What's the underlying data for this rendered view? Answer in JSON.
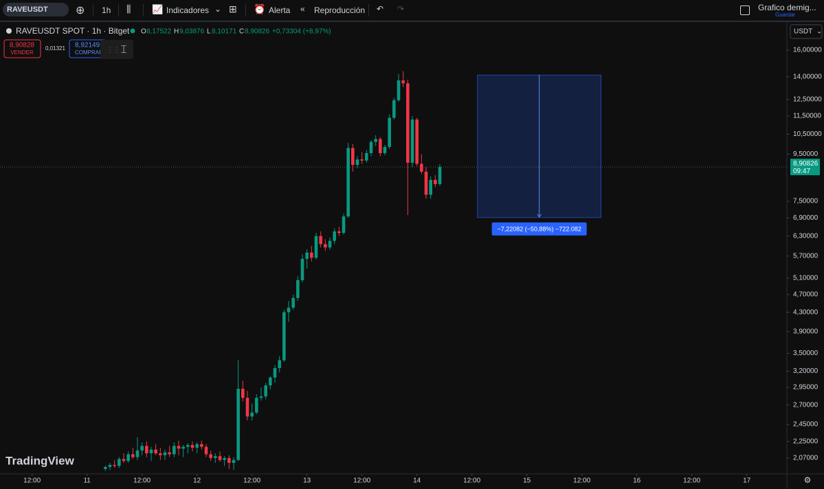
{
  "toolbar": {
    "symbol": "RAVEUSDT",
    "interval": "1h",
    "indicators": "Indicadores",
    "alert": "Alerta",
    "replay": "Reproducción",
    "layout_name": "Grafico demig...",
    "save": "Guardar"
  },
  "legend": {
    "title": "RAVEUSDT SPOT · 1h · Bitget",
    "o_label": "O",
    "o": "8,17522",
    "h_label": "H",
    "h": "9,03876",
    "l_label": "L",
    "l": "8,10171",
    "c_label": "C",
    "c": "8,90826",
    "change": "+0,73304 (+8,97%)"
  },
  "order_panel": {
    "sell_price": "8,90828",
    "sell": "VENDER",
    "spread": "0,01321",
    "buy_price": "8,92149",
    "buy": "COMPRAR"
  },
  "currency": "USDT",
  "brand": "TradingView",
  "chart_data": {
    "type": "candlestick",
    "log_scale": true,
    "grid": false,
    "up_color": "#089981",
    "down_color": "#f23645",
    "x": [
      28,
      29,
      30,
      31,
      32,
      33,
      34,
      35,
      36,
      37,
      38,
      39,
      40,
      41,
      42,
      43,
      44,
      45,
      46,
      47,
      48,
      49,
      50,
      51,
      52,
      53,
      54,
      55,
      56,
      57,
      58,
      59,
      60,
      61,
      62,
      63,
      64,
      65,
      66,
      67,
      68,
      69,
      70,
      71,
      72,
      73,
      74,
      75,
      76,
      77,
      78,
      79,
      80,
      81,
      82,
      83,
      84,
      85,
      86,
      87,
      88,
      89,
      90,
      91,
      92,
      93,
      94,
      95,
      96,
      97,
      98,
      99,
      100,
      101
    ],
    "open": [
      1.96,
      1.98,
      2.0,
      1.99,
      2.06,
      2.04,
      2.11,
      2.08,
      2.15,
      2.2,
      2.12,
      2.16,
      2.12,
      2.1,
      2.13,
      2.11,
      2.2,
      2.17,
      2.19,
      2.21,
      2.18,
      2.22,
      2.19,
      2.11,
      2.07,
      2.09,
      2.05,
      2.07,
      2.02,
      2.05,
      2.93,
      2.8,
      2.55,
      2.6,
      2.8,
      2.82,
      2.98,
      3.1,
      3.25,
      3.38,
      4.3,
      4.4,
      4.62,
      5.05,
      5.62,
      5.8,
      5.65,
      6.3,
      6.05,
      5.95,
      6.15,
      6.45,
      6.4,
      6.95,
      9.8,
      9.0,
      9.25,
      9.2,
      9.55,
      10.1,
      10.25,
      9.55,
      9.85,
      11.4,
      12.45,
      13.75,
      13.55,
      9.1,
      11.3,
      9.05,
      8.7,
      7.75,
      8.35,
      8.17522
    ],
    "high": [
      1.99,
      2.02,
      2.05,
      2.08,
      2.12,
      2.14,
      2.18,
      2.3,
      2.24,
      2.25,
      2.19,
      2.22,
      2.18,
      2.16,
      2.2,
      2.24,
      2.26,
      2.21,
      2.23,
      2.25,
      2.24,
      2.26,
      2.22,
      2.15,
      2.12,
      2.14,
      2.09,
      2.1,
      2.08,
      3.38,
      3.05,
      2.9,
      2.72,
      2.85,
      2.95,
      3.02,
      3.12,
      3.3,
      3.45,
      4.35,
      4.55,
      4.7,
      5.15,
      5.75,
      5.9,
      6.0,
      6.4,
      6.45,
      6.2,
      6.25,
      6.55,
      6.6,
      7.05,
      10.05,
      10.0,
      9.4,
      9.6,
      9.7,
      10.2,
      10.45,
      10.35,
      9.95,
      11.6,
      12.6,
      14.2,
      14.4,
      13.8,
      11.5,
      11.4,
      9.5,
      8.9,
      8.5,
      8.55,
      9.03876
    ],
    "low": [
      1.94,
      1.95,
      1.97,
      1.97,
      2.02,
      2.02,
      2.06,
      2.05,
      2.1,
      2.08,
      2.04,
      2.1,
      2.05,
      2.05,
      2.08,
      2.08,
      2.1,
      2.08,
      2.12,
      2.14,
      2.12,
      2.16,
      2.08,
      2.04,
      2.02,
      2.03,
      1.99,
      1.96,
      1.95,
      2.04,
      2.75,
      2.5,
      2.5,
      2.58,
      2.76,
      2.78,
      2.92,
      3.02,
      3.18,
      3.35,
      4.1,
      4.35,
      4.55,
      5.0,
      5.35,
      5.55,
      5.6,
      5.95,
      5.85,
      5.88,
      6.05,
      6.3,
      6.35,
      6.9,
      8.7,
      8.85,
      9.05,
      9.1,
      9.4,
      9.9,
      9.4,
      9.45,
      9.75,
      11.3,
      12.35,
      13.3,
      7.0,
      8.9,
      8.95,
      8.6,
      7.6,
      7.6,
      8.05,
      8.10171
    ],
    "close": [
      1.98,
      2.0,
      1.99,
      2.06,
      2.04,
      2.11,
      2.08,
      2.15,
      2.2,
      2.12,
      2.16,
      2.12,
      2.1,
      2.13,
      2.11,
      2.2,
      2.17,
      2.19,
      2.21,
      2.18,
      2.22,
      2.19,
      2.11,
      2.07,
      2.09,
      2.05,
      2.07,
      2.02,
      2.05,
      2.93,
      2.8,
      2.55,
      2.6,
      2.8,
      2.82,
      2.98,
      3.1,
      3.25,
      3.38,
      4.3,
      4.4,
      4.62,
      5.05,
      5.62,
      5.8,
      5.65,
      6.3,
      6.05,
      5.95,
      6.15,
      6.45,
      6.4,
      6.95,
      9.8,
      9.0,
      9.25,
      9.2,
      9.55,
      10.1,
      10.25,
      9.55,
      9.85,
      11.4,
      12.45,
      13.75,
      13.55,
      9.1,
      11.3,
      9.05,
      8.7,
      7.75,
      8.35,
      8.17522,
      8.90826
    ],
    "ylim": [
      1.912,
      18.24
    ],
    "yticks": [
      {
        "value": 2.07,
        "label": "2,07000"
      },
      {
        "value": 2.25,
        "label": "2,25000"
      },
      {
        "value": 2.45,
        "label": "2,45000"
      },
      {
        "value": 2.7,
        "label": "2,70000"
      },
      {
        "value": 2.95,
        "label": "2,95000"
      },
      {
        "value": 3.2,
        "label": "3,20000"
      },
      {
        "value": 3.5,
        "label": "3,50000"
      },
      {
        "value": 3.9,
        "label": "3,90000"
      },
      {
        "value": 4.3,
        "label": "4,30000"
      },
      {
        "value": 4.7,
        "label": "4,70000"
      },
      {
        "value": 5.1,
        "label": "5,10000"
      },
      {
        "value": 5.7,
        "label": "5,70000"
      },
      {
        "value": 6.3,
        "label": "6,30000"
      },
      {
        "value": 6.9,
        "label": "6,90000"
      },
      {
        "value": 7.5,
        "label": "7,50000"
      },
      {
        "value": 9.5,
        "label": "9,50000"
      },
      {
        "value": 10.5,
        "label": "10,50000"
      },
      {
        "value": 11.5,
        "label": "11,50000"
      },
      {
        "value": 12.5,
        "label": "12,50000"
      },
      {
        "value": 14,
        "label": "14,00000"
      },
      {
        "value": 16,
        "label": "16,00000"
      }
    ],
    "xlim": [
      5,
      176.75
    ],
    "xticks": [
      {
        "value": 12,
        "label": "12:00"
      },
      {
        "value": 24,
        "label": "11"
      },
      {
        "value": 36,
        "label": "12:00"
      },
      {
        "value": 48,
        "label": "12"
      },
      {
        "value": 60,
        "label": "12:00"
      },
      {
        "value": 72,
        "label": "13"
      },
      {
        "value": 84,
        "label": "12:00"
      },
      {
        "value": 96,
        "label": "14"
      },
      {
        "value": 108,
        "label": "12:00"
      },
      {
        "value": 120,
        "label": "15"
      },
      {
        "value": 132,
        "label": "12:00"
      },
      {
        "value": 144,
        "label": "16"
      },
      {
        "value": 156,
        "label": "12:00"
      },
      {
        "value": 168,
        "label": "17"
      }
    ],
    "price_label": {
      "value": 8.90826,
      "label": "8,90826",
      "countdown": "09:47"
    },
    "measure": {
      "x_from": 109.2,
      "x_to": 136.2,
      "from": 14.13,
      "to": 6.91,
      "label": "−7,22082 (−50,88%) −722.082"
    }
  }
}
